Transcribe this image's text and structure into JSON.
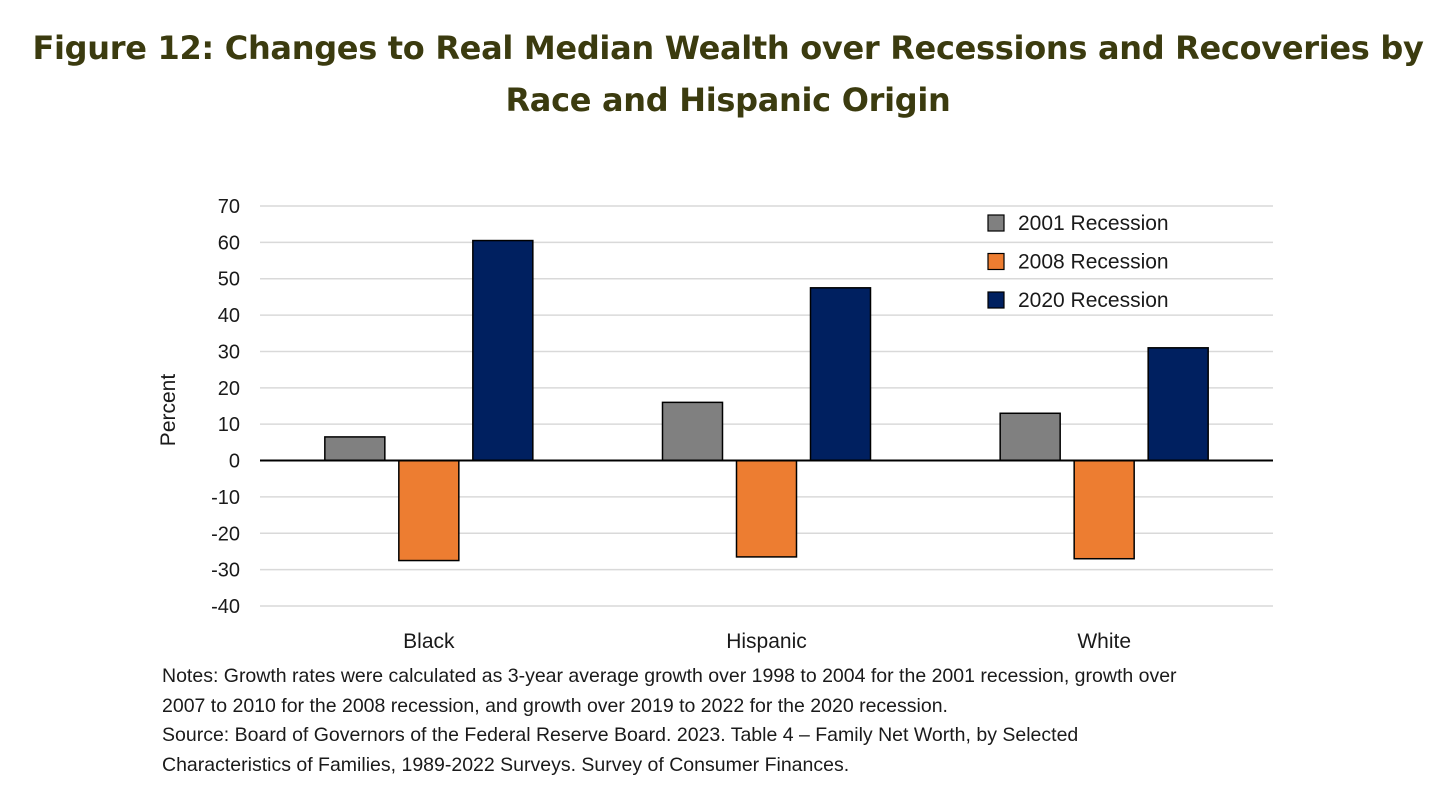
{
  "figure": {
    "title_line1": "Figure 12: Changes to Real Median Wealth over Recessions and Recoveries by",
    "title_line2": "Race and Hispanic Origin"
  },
  "chart_data": {
    "type": "bar",
    "categories": [
      "Black",
      "Hispanic",
      "White"
    ],
    "series": [
      {
        "name": "2001 Recession",
        "color": "#808080",
        "values": [
          6.5,
          16,
          13
        ]
      },
      {
        "name": "2008 Recession",
        "color": "#ed7d31",
        "values": [
          -27.5,
          -26.5,
          -27
        ]
      },
      {
        "name": "2020 Recession",
        "color": "#002060",
        "values": [
          60.5,
          47.5,
          31
        ]
      }
    ],
    "ylabel": "Percent",
    "xlabel": "",
    "ylim": [
      -40,
      70
    ],
    "yticks": [
      70,
      60,
      50,
      40,
      30,
      20,
      10,
      0,
      -10,
      -20,
      -30,
      -40
    ],
    "grid": true,
    "legend_position": "top-right"
  },
  "notes": {
    "line1": "Notes: Growth rates were calculated as 3-year average growth over 1998 to 2004 for the 2001 recession, growth over",
    "line2": "2007 to 2010 for the 2008 recession, and growth over 2019 to 2022 for the 2020 recession.",
    "line3": "Source: Board of Governors of the Federal Reserve Board. 2023. Table 4 – Family Net Worth, by Selected",
    "line4": "Characteristics of Families, 1989-2022 Surveys. Survey of Consumer Finances."
  }
}
